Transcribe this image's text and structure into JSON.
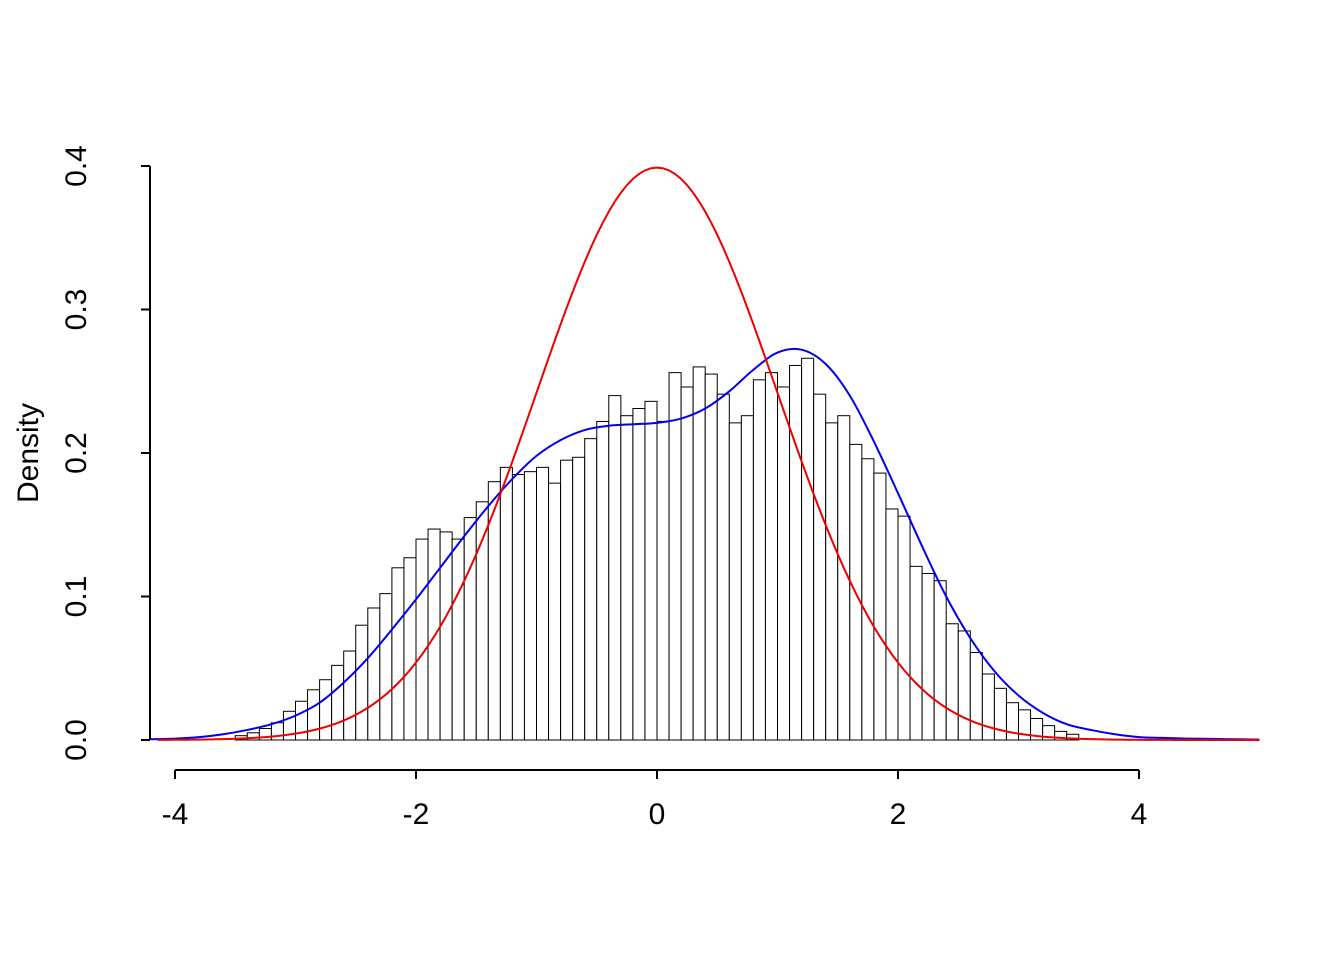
{
  "figure": {
    "background": "#ffffff",
    "text_color": "#000000"
  },
  "chart_data": {
    "type": "bar",
    "subtype": "histogram-with-density-overlays",
    "title": "",
    "xlabel": "",
    "ylabel": "Density",
    "xlim": [
      -4.2,
      5.0
    ],
    "ylim": [
      0.0,
      0.4
    ],
    "grid": false,
    "legend_position": "none",
    "x_ticks": [
      -4,
      -2,
      0,
      2,
      4
    ],
    "x_tick_labels": [
      "-4",
      "-2",
      "0",
      "2",
      "4"
    ],
    "y_ticks": [
      0.0,
      0.1,
      0.2,
      0.3,
      0.4
    ],
    "y_tick_labels": [
      "0.0",
      "0.1",
      "0.2",
      "0.3",
      "0.4"
    ],
    "histogram": {
      "name": "sample-histogram",
      "bar_fill": "#ffffff",
      "bar_stroke": "#000000",
      "bin_start": -3.5,
      "bin_width": 0.1,
      "densities": [
        0.003,
        0.005,
        0.008,
        0.012,
        0.02,
        0.027,
        0.035,
        0.042,
        0.052,
        0.062,
        0.08,
        0.092,
        0.102,
        0.12,
        0.127,
        0.14,
        0.147,
        0.145,
        0.14,
        0.155,
        0.166,
        0.18,
        0.19,
        0.185,
        0.187,
        0.19,
        0.179,
        0.195,
        0.197,
        0.21,
        0.222,
        0.24,
        0.226,
        0.231,
        0.236,
        0.222,
        0.256,
        0.246,
        0.26,
        0.255,
        0.241,
        0.221,
        0.226,
        0.251,
        0.256,
        0.246,
        0.261,
        0.266,
        0.241,
        0.221,
        0.226,
        0.206,
        0.196,
        0.186,
        0.161,
        0.156,
        0.121,
        0.116,
        0.111,
        0.081,
        0.076,
        0.061,
        0.046,
        0.036,
        0.026,
        0.021,
        0.015,
        0.01,
        0.006,
        0.004
      ]
    },
    "series": [
      {
        "name": "kernel-density-estimate",
        "color": "#0000ee",
        "line_width": 2,
        "x": [
          -4.2,
          -4.0,
          -3.8,
          -3.6,
          -3.4,
          -3.2,
          -3.0,
          -2.8,
          -2.6,
          -2.4,
          -2.2,
          -2.0,
          -1.8,
          -1.6,
          -1.4,
          -1.2,
          -1.0,
          -0.8,
          -0.6,
          -0.4,
          -0.2,
          0.0,
          0.2,
          0.4,
          0.6,
          0.8,
          1.0,
          1.2,
          1.4,
          1.6,
          1.8,
          2.0,
          2.2,
          2.4,
          2.6,
          2.8,
          3.0,
          3.2,
          3.4,
          3.6,
          3.8,
          4.0,
          4.2,
          4.4,
          4.6,
          4.8,
          5.0
        ],
        "y": [
          0.0005,
          0.001,
          0.002,
          0.004,
          0.007,
          0.011,
          0.017,
          0.026,
          0.04,
          0.057,
          0.077,
          0.098,
          0.12,
          0.142,
          0.163,
          0.182,
          0.198,
          0.209,
          0.216,
          0.219,
          0.22,
          0.221,
          0.224,
          0.231,
          0.243,
          0.258,
          0.27,
          0.272,
          0.262,
          0.24,
          0.208,
          0.172,
          0.135,
          0.1,
          0.071,
          0.048,
          0.031,
          0.019,
          0.011,
          0.007,
          0.004,
          0.002,
          0.0015,
          0.001,
          0.0008,
          0.0005,
          0.0003
        ]
      },
      {
        "name": "standard-normal-curve",
        "color": "#ee0000",
        "line_width": 2,
        "distribution": "normal",
        "mean": 0,
        "sd": 1,
        "peak_density": 0.3989,
        "x_range": [
          -4.15,
          5.0
        ],
        "x_step": 0.05
      }
    ]
  }
}
